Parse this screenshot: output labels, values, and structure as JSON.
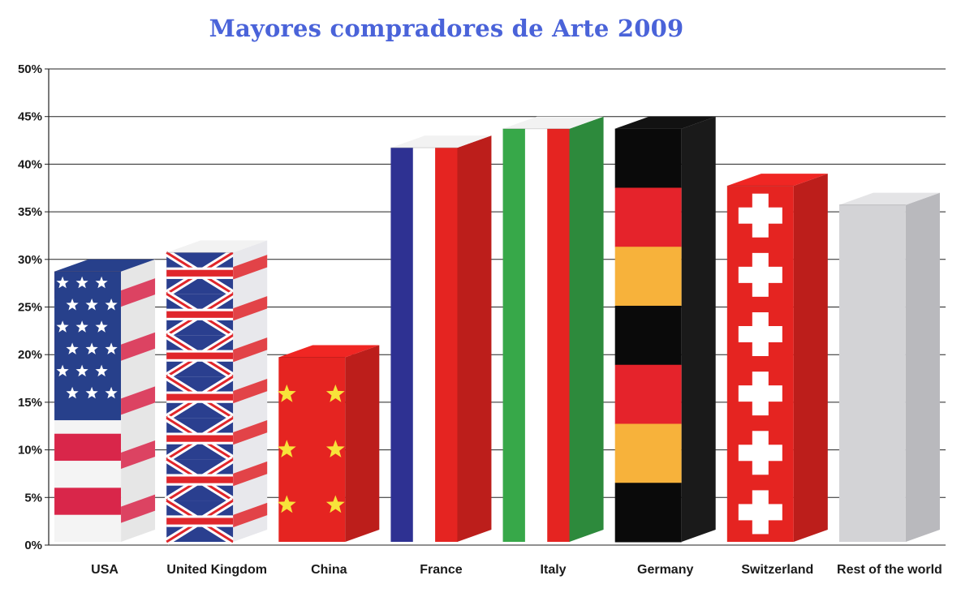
{
  "chart_data": {
    "type": "bar",
    "title": "Mayores compradores de Arte 2009",
    "categories": [
      "USA",
      "United Kingdom",
      "China",
      "France",
      "Italy",
      "Germany",
      "Switzerland",
      "Rest of the world"
    ],
    "values": [
      30,
      32,
      21,
      43,
      45,
      45,
      39,
      37
    ],
    "ylim": [
      0,
      50
    ],
    "ytick_step": 5,
    "ytick_labels": [
      "0%",
      "5%",
      "10%",
      "15%",
      "20%",
      "25%",
      "30%",
      "35%",
      "40%",
      "45%",
      "50%"
    ],
    "grid": true,
    "bar_styles": [
      "usa-flag",
      "uk-flag",
      "china-flag",
      "france-flag",
      "italy-flag",
      "germany-flag",
      "switzerland-flag",
      "plain-gray"
    ],
    "colors": {
      "title": "#4a63d9",
      "usa_blue": "#27408b",
      "usa_red": "#d9264a",
      "uk_blue": "#2a3f8f",
      "uk_red": "#e0262b",
      "china_red": "#e52421",
      "china_yellow": "#f7e33a",
      "france_blue": "#2e3192",
      "france_red": "#e52421",
      "italy_green": "#37a849",
      "italy_red": "#e52421",
      "germany_black": "#0a0a0a",
      "germany_red": "#e5232b",
      "germany_gold": "#f7b23b",
      "swiss_red": "#e52421",
      "gray": "#d3d3d6"
    }
  }
}
